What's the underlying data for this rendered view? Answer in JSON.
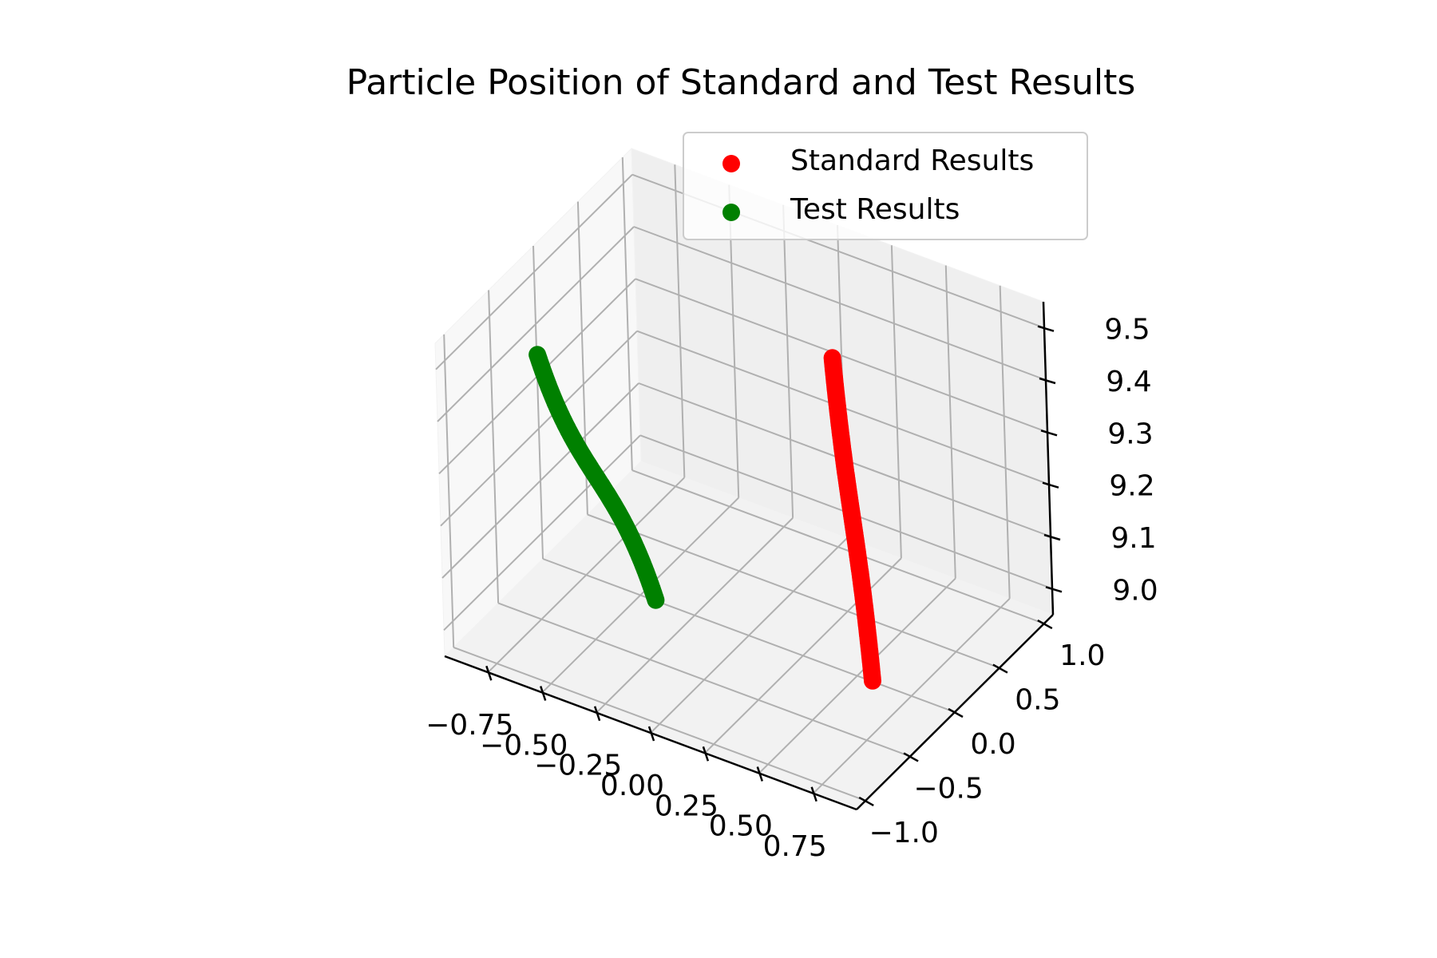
{
  "chart_data": {
    "type": "scatter",
    "projection": "3d",
    "title": "Particle Position of Standard and Test Results",
    "xlabel": "",
    "ylabel": "",
    "zlabel": "",
    "grid": true,
    "legend_position": "top-right",
    "xlim": [
      -0.95,
      0.95
    ],
    "ylim": [
      -1.1,
      1.1
    ],
    "zlim": [
      8.95,
      9.55
    ],
    "x_ticks": [
      "−0.75",
      "−0.50",
      "−0.25",
      "0.00",
      "0.25",
      "0.50",
      "0.75"
    ],
    "y_ticks": [
      "−1.0",
      "−0.5",
      "0.0",
      "0.5",
      "1.0"
    ],
    "z_ticks": [
      "9.0",
      "9.1",
      "9.2",
      "9.3",
      "9.4",
      "9.5"
    ],
    "series": [
      {
        "name": "Standard Results",
        "color": "#ff0000",
        "curve": {
          "x": "1 - t",
          "y": "2t - 1",
          "z": "9.25 + 0.5(t - 0.5)^3",
          "t_range": [
            0,
            1
          ]
        },
        "x_range": [
          0.0,
          1.0
        ],
        "y_range": [
          -1.0,
          1.0
        ],
        "z_range": [
          9.19,
          9.31
        ]
      },
      {
        "name": "Test Results",
        "color": "#008000",
        "curve": {
          "x": "-t",
          "y": "-1 + 1.125t",
          "z": "9.25 + 0.5(t - 0.5)^3",
          "t_range": [
            0,
            1
          ]
        },
        "x_range": [
          -1.0,
          0.0
        ],
        "y_range": [
          -1.0,
          0.125
        ],
        "z_range": [
          9.19,
          9.31
        ]
      }
    ]
  }
}
